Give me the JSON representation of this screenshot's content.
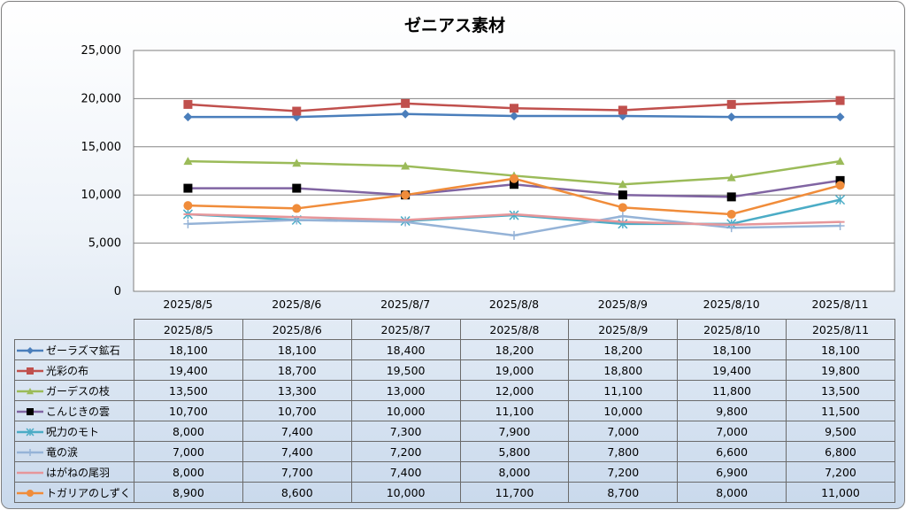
{
  "chart_data": {
    "type": "line",
    "title": "ゼニアス素材",
    "categories": [
      "2025/8/5",
      "2025/8/6",
      "2025/8/7",
      "2025/8/8",
      "2025/8/9",
      "2025/8/10",
      "2025/8/11"
    ],
    "ylim": [
      0,
      25000
    ],
    "yticks": [
      "25,000",
      "20,000",
      "15,000",
      "10,000",
      "5,000",
      "0"
    ],
    "grid": "horizontal",
    "legend": "data-table",
    "series": [
      {
        "name": "ゼーラズマ鉱石",
        "color": "#4a7ebb",
        "marker": "diamond",
        "values": [
          18100,
          18100,
          18400,
          18200,
          18200,
          18100,
          18100
        ],
        "labels": [
          "18,100",
          "18,100",
          "18,400",
          "18,200",
          "18,200",
          "18,100",
          "18,100"
        ]
      },
      {
        "name": "光彩の布",
        "color": "#c0504d",
        "marker": "square",
        "values": [
          19400,
          18700,
          19500,
          19000,
          18800,
          19400,
          19800
        ],
        "labels": [
          "19,400",
          "18,700",
          "19,500",
          "19,000",
          "18,800",
          "19,400",
          "19,800"
        ]
      },
      {
        "name": "ガーデスの枝",
        "color": "#9bbb59",
        "marker": "triangle",
        "values": [
          13500,
          13300,
          13000,
          12000,
          11100,
          11800,
          13500
        ],
        "labels": [
          "13,500",
          "13,300",
          "13,000",
          "12,000",
          "11,100",
          "11,800",
          "13,500"
        ]
      },
      {
        "name": "こんじきの雲",
        "color": "#8064a2",
        "marker": "square-black",
        "values": [
          10700,
          10700,
          10000,
          11100,
          10000,
          9800,
          11500
        ],
        "labels": [
          "10,700",
          "10,700",
          "10,000",
          "11,100",
          "10,000",
          "9,800",
          "11,500"
        ]
      },
      {
        "name": "呪力のモト",
        "color": "#4bacc6",
        "marker": "star",
        "values": [
          8000,
          7400,
          7300,
          7900,
          7000,
          7000,
          9500
        ],
        "labels": [
          "8,000",
          "7,400",
          "7,300",
          "7,900",
          "7,000",
          "7,000",
          "9,500"
        ]
      },
      {
        "name": "竜の涙",
        "color": "#95b3d7",
        "marker": "plus",
        "values": [
          7000,
          7400,
          7200,
          5800,
          7800,
          6600,
          6800
        ],
        "labels": [
          "7,000",
          "7,400",
          "7,200",
          "5,800",
          "7,800",
          "6,600",
          "6,800"
        ]
      },
      {
        "name": "はがねの尾羽",
        "color": "#e6969a",
        "marker": "dash",
        "values": [
          8000,
          7700,
          7400,
          8000,
          7200,
          6900,
          7200
        ],
        "labels": [
          "8,000",
          "7,700",
          "7,400",
          "8,000",
          "7,200",
          "6,900",
          "7,200"
        ]
      },
      {
        "name": "トガリアのしずく",
        "color": "#f08c3a",
        "marker": "circle",
        "values": [
          8900,
          8600,
          10000,
          11700,
          8700,
          8000,
          11000
        ],
        "labels": [
          "8,900",
          "8,600",
          "10,000",
          "11,700",
          "8,700",
          "8,000",
          "11,000"
        ]
      }
    ]
  }
}
